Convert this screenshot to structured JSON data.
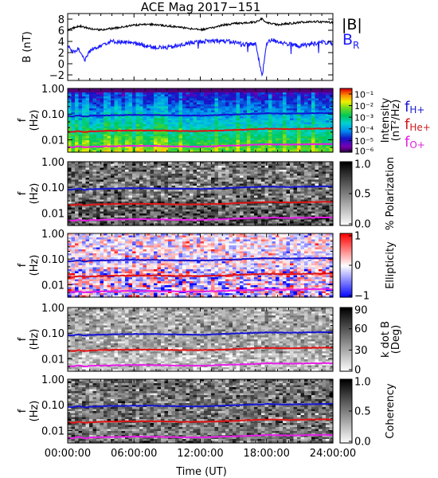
{
  "title": "ACE Mag 2017−151",
  "xlabel": "Time (UT)",
  "xticks": [
    "00:00:00",
    "06:00:00",
    "12:00:00",
    "18:00:00",
    "24:00:00"
  ],
  "colors": {
    "B_total": "#000000",
    "B_R": "#1a1aff",
    "f_H": "#1414d2",
    "f_He": "#e01414",
    "f_O": "#e61ee6",
    "legend_H": "#1a1acc",
    "legend_He": "#cc1a1a",
    "legend_O": "#e020e0"
  },
  "chart_data": [
    {
      "type": "line",
      "panel": "magnetic-field",
      "ylabel": "B (nT)",
      "ylim": [
        -3,
        9
      ],
      "yticks": [
        "−2",
        "0",
        "2",
        "4",
        "6",
        "8"
      ],
      "ytick_values": [
        -2,
        0,
        2,
        4,
        6,
        8
      ],
      "xlim_hours": [
        0,
        24
      ],
      "legend": [
        "|B|",
        "B_R"
      ],
      "series": [
        {
          "name": "|B|",
          "color_key": "B_total",
          "x": [
            0,
            1,
            2,
            3,
            4,
            5,
            6,
            7,
            8,
            9,
            10,
            11,
            12,
            13,
            14,
            15,
            16,
            17,
            17.6,
            18,
            19,
            20,
            21,
            22,
            23,
            24
          ],
          "values": [
            6.0,
            6.8,
            6.3,
            6.1,
            6.3,
            6.6,
            6.9,
            7.1,
            7.0,
            6.8,
            6.6,
            6.3,
            6.1,
            6.4,
            6.9,
            7.2,
            7.3,
            7.5,
            8.1,
            7.3,
            7.0,
            7.2,
            7.4,
            7.6,
            7.5,
            7.4
          ]
        },
        {
          "name": "B_R",
          "color_key": "B_R",
          "x": [
            0,
            0.5,
            1,
            1.5,
            2,
            3,
            4,
            5,
            6,
            7,
            8,
            9,
            10,
            11,
            12,
            13,
            14,
            15,
            16,
            17,
            17.6,
            18,
            18.5,
            19,
            20,
            21,
            22,
            23,
            24
          ],
          "values": [
            3.4,
            2.0,
            2.8,
            0.5,
            2.3,
            3.4,
            4.0,
            3.9,
            3.6,
            3.3,
            2.9,
            2.9,
            3.2,
            3.7,
            4.0,
            4.1,
            4.1,
            3.9,
            3.5,
            3.6,
            -2.3,
            3.7,
            4.3,
            4.0,
            3.5,
            3.2,
            3.5,
            3.9,
            3.6
          ]
        }
      ]
    },
    {
      "type": "heatmap",
      "panel": "intensity",
      "ylabel": "f (Hz)",
      "yscale": "log",
      "ylim": [
        0.0033,
        1.0
      ],
      "yticks": [
        "1.00",
        "0.10",
        "0.01"
      ],
      "ytick_values": [
        1.0,
        0.1,
        0.01
      ],
      "colorbar": {
        "label": "Intensity (nT²/Hz)",
        "scale": "log",
        "range": [
          1e-06,
          0.3
        ],
        "ticks": [
          "10⁻¹",
          "10⁻²",
          "10⁻³",
          "10⁻⁴",
          "10⁻⁵",
          "10⁻⁶"
        ],
        "tick_values": [
          0.1,
          0.01,
          0.001,
          0.0001,
          1e-05,
          1e-06
        ],
        "colormap": "rainbow"
      },
      "legend": [
        {
          "label": "f",
          "sub": "H+",
          "color_key": "legend_H"
        },
        {
          "label": "f",
          "sub": "He+",
          "color_key": "legend_He"
        },
        {
          "label": "f",
          "sub": "O+",
          "color_key": "legend_O"
        }
      ]
    },
    {
      "type": "heatmap",
      "panel": "polarization",
      "ylabel": "f (Hz)",
      "yscale": "log",
      "ylim": [
        0.0033,
        1.0
      ],
      "yticks": [
        "1.00",
        "0.10",
        "0.01"
      ],
      "ytick_values": [
        1.0,
        0.1,
        0.01
      ],
      "colorbar": {
        "label": "% Polarization",
        "scale": "linear",
        "range": [
          0,
          1
        ],
        "ticks": [
          "1.0",
          "0.5",
          "0.0"
        ],
        "tick_values": [
          1.0,
          0.5,
          0.0
        ],
        "colormap": "gray"
      }
    },
    {
      "type": "heatmap",
      "panel": "ellipticity",
      "ylabel": "f (Hz)",
      "yscale": "log",
      "ylim": [
        0.0033,
        1.0
      ],
      "yticks": [
        "1.00",
        "0.10",
        "0.01"
      ],
      "ytick_values": [
        1.0,
        0.1,
        0.01
      ],
      "colorbar": {
        "label": "Ellipticity",
        "scale": "linear",
        "range": [
          -1,
          1
        ],
        "ticks": [
          "1",
          "0",
          "−1"
        ],
        "tick_values": [
          1,
          0,
          -1
        ],
        "colormap": "blue-white-red"
      }
    },
    {
      "type": "heatmap",
      "panel": "k-dot-b",
      "ylabel": "f (Hz)",
      "yscale": "log",
      "ylim": [
        0.0033,
        1.0
      ],
      "yticks": [
        "1.00",
        "0.10",
        "0.01"
      ],
      "ytick_values": [
        1.0,
        0.1,
        0.01
      ],
      "colorbar": {
        "label": "k dot B (Deg)",
        "scale": "linear",
        "range": [
          0,
          90
        ],
        "ticks": [
          "90",
          "60",
          "30",
          "0"
        ],
        "tick_values": [
          90,
          60,
          30,
          0
        ],
        "colormap": "gray"
      }
    },
    {
      "type": "heatmap",
      "panel": "coherency",
      "ylabel": "f (Hz)",
      "yscale": "log",
      "ylim": [
        0.0033,
        1.0
      ],
      "yticks": [
        "1.00",
        "0.10",
        "0.01"
      ],
      "ytick_values": [
        1.0,
        0.1,
        0.01
      ],
      "colorbar": {
        "label": "Coherency",
        "scale": "linear",
        "range": [
          0,
          1
        ],
        "ticks": [
          "1.0",
          "0.5",
          "0.0"
        ],
        "tick_values": [
          1.0,
          0.5,
          0.0
        ],
        "colormap": "gray"
      }
    }
  ],
  "gyrofrequency_lines": {
    "x_hours": [
      0,
      0.5,
      1,
      1.5,
      2,
      3,
      4,
      6,
      8,
      10,
      12,
      14,
      16,
      18,
      20,
      22,
      24
    ],
    "f_H+": [
      0.083,
      0.082,
      0.09,
      0.08,
      0.085,
      0.088,
      0.09,
      0.093,
      0.092,
      0.089,
      0.087,
      0.093,
      0.1,
      0.108,
      0.104,
      0.108,
      0.11
    ],
    "f_He+": [
      0.021,
      0.02,
      0.022,
      0.02,
      0.021,
      0.022,
      0.0225,
      0.023,
      0.023,
      0.022,
      0.022,
      0.023,
      0.025,
      0.027,
      0.026,
      0.027,
      0.0275
    ],
    "f_O+": [
      0.0052,
      0.0051,
      0.0056,
      0.005,
      0.0053,
      0.0055,
      0.0056,
      0.0058,
      0.0057,
      0.0055,
      0.0054,
      0.0058,
      0.0062,
      0.0067,
      0.0065,
      0.0067,
      0.0068
    ]
  }
}
